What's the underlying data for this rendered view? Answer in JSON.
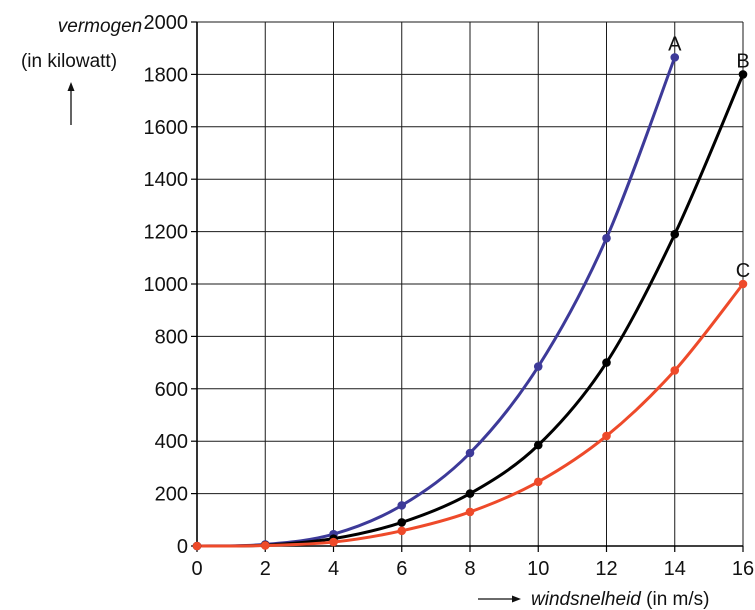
{
  "chart_data": {
    "type": "line",
    "title": "",
    "ylabel": {
      "italic": "vermogen",
      "unit": "(in kilowatt)"
    },
    "xlabel": {
      "italic": "windsnelheid",
      "unit": "(in m/s)"
    },
    "xlim": [
      0,
      16
    ],
    "ylim": [
      0,
      2000
    ],
    "x_ticks": [
      0,
      2,
      4,
      6,
      8,
      10,
      12,
      14,
      16
    ],
    "y_ticks": [
      0,
      200,
      400,
      600,
      800,
      1000,
      1200,
      1400,
      1600,
      1800,
      2000
    ],
    "grid": true,
    "series": [
      {
        "name": "A",
        "color": "#3d3a99",
        "x": [
          0,
          2,
          4,
          6,
          8,
          10,
          12,
          14
        ],
        "y": [
          0,
          6,
          45,
          155,
          355,
          685,
          1175,
          1865
        ]
      },
      {
        "name": "B",
        "color": "#000000",
        "x": [
          0,
          2,
          4,
          6,
          8,
          10,
          12,
          14,
          16
        ],
        "y": [
          0,
          3,
          28,
          90,
          200,
          385,
          700,
          1190,
          1800
        ]
      },
      {
        "name": "C",
        "color": "#ee4a2a",
        "x": [
          0,
          2,
          4,
          6,
          8,
          10,
          12,
          14,
          16
        ],
        "y": [
          0,
          2,
          15,
          58,
          130,
          245,
          420,
          670,
          1000
        ]
      }
    ]
  }
}
